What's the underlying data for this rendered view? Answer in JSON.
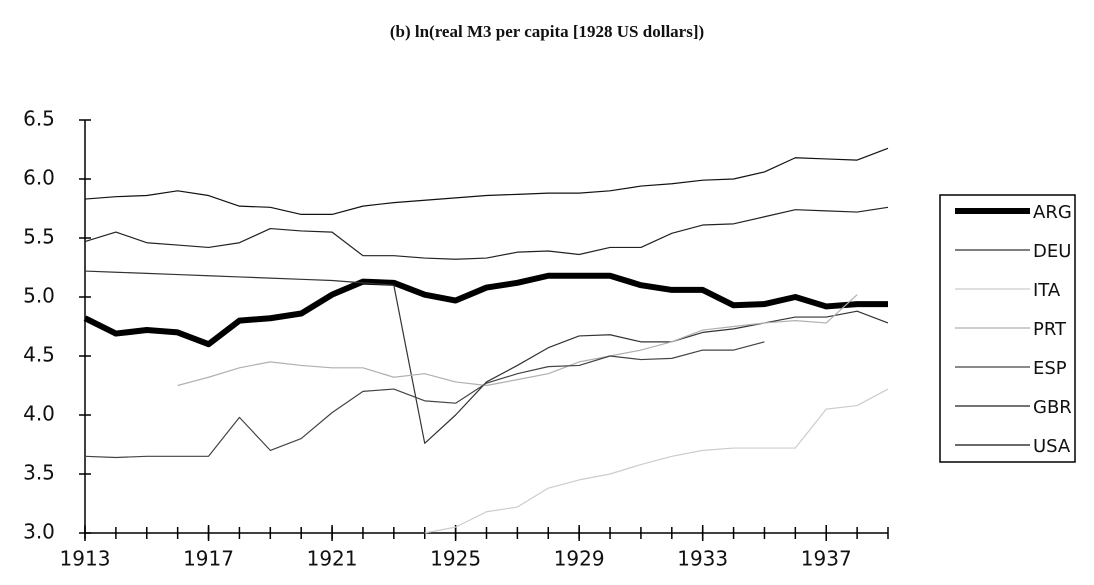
{
  "chart_data": {
    "type": "line",
    "title": "(b) ln(real M3 per capita [1928 US dollars])",
    "x": [
      1913,
      1914,
      1915,
      1916,
      1917,
      1918,
      1919,
      1920,
      1921,
      1922,
      1923,
      1924,
      1925,
      1926,
      1927,
      1928,
      1929,
      1930,
      1931,
      1932,
      1933,
      1934,
      1935,
      1936,
      1937,
      1938,
      1939
    ],
    "xlim": [
      1913,
      1939
    ],
    "xticks": [
      1913,
      1917,
      1921,
      1925,
      1929,
      1933,
      1937
    ],
    "ylim": [
      3.0,
      6.5
    ],
    "yticks": [
      {
        "value": 3.0,
        "label": "3.0"
      },
      3.5,
      {
        "value": 4.0,
        "label": "4.0"
      },
      4.5,
      {
        "value": 5.0,
        "label": "5.0"
      },
      5.5,
      {
        "value": 6.0,
        "label": "6.0"
      },
      6.5
    ],
    "series": [
      {
        "name": "ARG",
        "color": "#000000",
        "width": 6,
        "values": [
          4.82,
          4.69,
          4.72,
          4.7,
          4.6,
          4.8,
          4.82,
          4.86,
          5.02,
          5.13,
          5.12,
          5.02,
          4.97,
          5.08,
          5.12,
          5.18,
          5.18,
          5.18,
          5.1,
          5.06,
          5.06,
          4.93,
          4.94,
          5.0,
          4.92,
          4.94,
          4.94
        ]
      },
      {
        "name": "DEU",
        "color": "#333333",
        "width": 1.2,
        "values": [
          5.22,
          5.21,
          5.2,
          5.19,
          5.18,
          5.17,
          5.16,
          5.15,
          5.14,
          5.12,
          5.1,
          3.76,
          4.0,
          4.28,
          4.42,
          4.57,
          4.67,
          4.68,
          4.62,
          4.62,
          4.7,
          4.73,
          4.78,
          4.83,
          4.83,
          4.88,
          4.78
        ]
      },
      {
        "name": "ITA",
        "color": "#cccccc",
        "width": 1.2,
        "values": [
          null,
          null,
          null,
          null,
          null,
          null,
          null,
          null,
          null,
          null,
          null,
          3.0,
          3.05,
          3.18,
          3.22,
          3.38,
          3.45,
          3.5,
          3.58,
          3.65,
          3.7,
          3.72,
          3.72,
          3.72,
          4.05,
          4.08,
          4.22
        ]
      },
      {
        "name": "PRT",
        "color": "#b0b0b0",
        "width": 1.2,
        "values": [
          null,
          null,
          null,
          4.25,
          4.32,
          4.4,
          4.45,
          4.42,
          4.4,
          4.4,
          4.32,
          4.35,
          4.28,
          4.25,
          4.3,
          4.35,
          4.45,
          4.5,
          4.55,
          4.62,
          4.72,
          4.75,
          4.78,
          4.8,
          4.78,
          5.02,
          null
        ]
      },
      {
        "name": "ESP",
        "color": "#444444",
        "width": 1.2,
        "values": [
          3.65,
          3.64,
          3.65,
          3.65,
          3.65,
          3.98,
          3.7,
          3.8,
          4.02,
          4.2,
          4.22,
          4.12,
          4.1,
          4.27,
          4.35,
          4.41,
          4.42,
          4.5,
          4.47,
          4.48,
          4.55,
          4.55,
          4.62,
          null,
          null,
          null,
          null
        ]
      },
      {
        "name": "GBR",
        "color": "#222222",
        "width": 1.2,
        "values": [
          5.47,
          5.55,
          5.46,
          5.44,
          5.42,
          5.46,
          5.58,
          5.56,
          5.55,
          5.35,
          5.35,
          5.33,
          5.32,
          5.33,
          5.38,
          5.39,
          5.36,
          5.42,
          5.42,
          5.54,
          5.61,
          5.62,
          5.68,
          5.74,
          5.73,
          5.72,
          5.76
        ]
      },
      {
        "name": "USA",
        "color": "#111111",
        "width": 1.2,
        "values": [
          5.83,
          5.85,
          5.86,
          5.9,
          5.86,
          5.77,
          5.76,
          5.7,
          5.7,
          5.77,
          5.8,
          5.82,
          5.84,
          5.86,
          5.87,
          5.88,
          5.88,
          5.9,
          5.94,
          5.96,
          5.99,
          6.0,
          6.06,
          6.18,
          6.17,
          6.16,
          6.26
        ]
      }
    ]
  }
}
